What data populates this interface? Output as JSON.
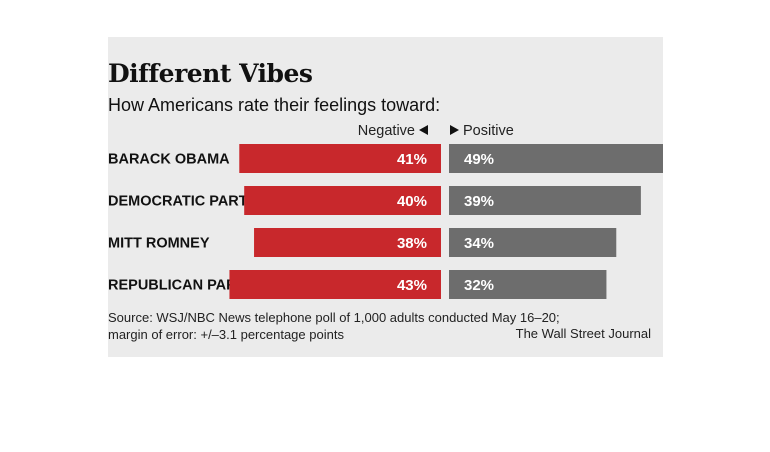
{
  "title": "Different Vibes",
  "subtitle": "How Americans rate their feelings toward:",
  "legend": {
    "negative_label": "Negative",
    "positive_label": "Positive"
  },
  "colors": {
    "negative": "#c8282c",
    "positive": "#6d6d6d",
    "background": "#ebebeb"
  },
  "chart_data": {
    "type": "bar",
    "orientation": "diverging-horizontal",
    "title": "Different Vibes",
    "subtitle": "How Americans rate their feelings toward:",
    "categories": [
      "BARACK OBAMA",
      "DEMOCRATIC PARTY",
      "MITT ROMNEY",
      "REPUBLICAN PARTY"
    ],
    "series": [
      {
        "name": "Negative",
        "values": [
          41,
          40,
          38,
          43
        ],
        "labels": [
          "41%",
          "40%",
          "38%",
          "43%"
        ],
        "color": "#c8282c"
      },
      {
        "name": "Positive",
        "values": [
          49,
          39,
          34,
          32
        ],
        "labels": [
          "49%",
          "39%",
          "34%",
          "32%"
        ],
        "color": "#6d6d6d"
      }
    ],
    "unit": "%",
    "grid": false
  },
  "source": "Source: WSJ/NBC News telephone poll of 1,000 adults conducted May 16–20; margin of error: +/–3.1 percentage points",
  "source_line1": "Source: WSJ/NBC News telephone poll of 1,000 adults conducted May 16–20;",
  "source_line2": "margin of error: +/–3.1 percentage points",
  "credit": "The Wall Street Journal"
}
